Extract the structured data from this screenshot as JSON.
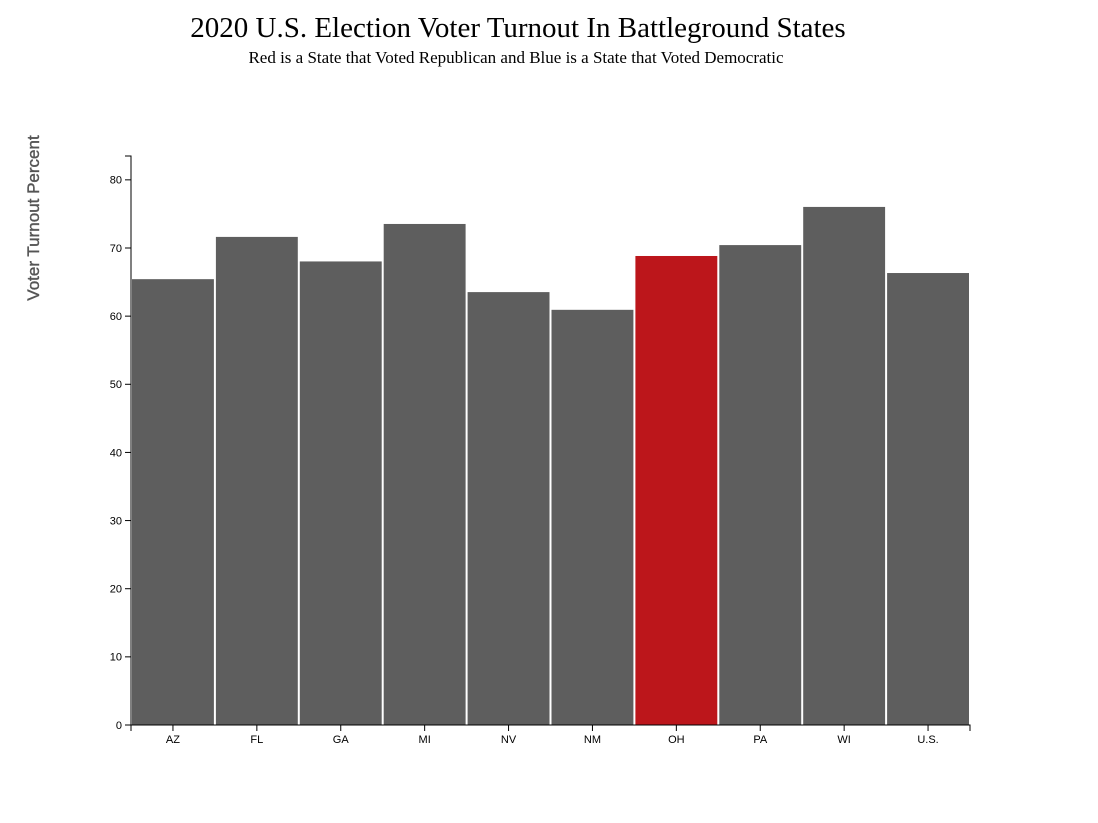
{
  "chart_data": {
    "type": "bar",
    "title": "2020 U.S. Election Voter Turnout In Battleground States",
    "subtitle": "Red is a State that Voted Republican and Blue is a State that Voted Democratic",
    "xlabel": "",
    "ylabel": "Voter Turnout Percent",
    "categories": [
      "AZ",
      "FL",
      "GA",
      "MI",
      "NV",
      "NM",
      "OH",
      "PA",
      "WI",
      "U.S."
    ],
    "values": [
      65.5,
      71.7,
      68.1,
      73.6,
      63.6,
      61.0,
      68.9,
      70.5,
      76.1,
      66.4
    ],
    "bar_colors": [
      "#5e5e5e",
      "#5e5e5e",
      "#5e5e5e",
      "#5e5e5e",
      "#5e5e5e",
      "#5e5e5e",
      "#bc161b",
      "#5e5e5e",
      "#5e5e5e",
      "#5e5e5e"
    ],
    "ylim": [
      0,
      83.5
    ],
    "yticks": [
      0,
      10,
      20,
      30,
      40,
      50,
      60,
      70,
      80
    ],
    "grid": false,
    "legend": "none"
  }
}
